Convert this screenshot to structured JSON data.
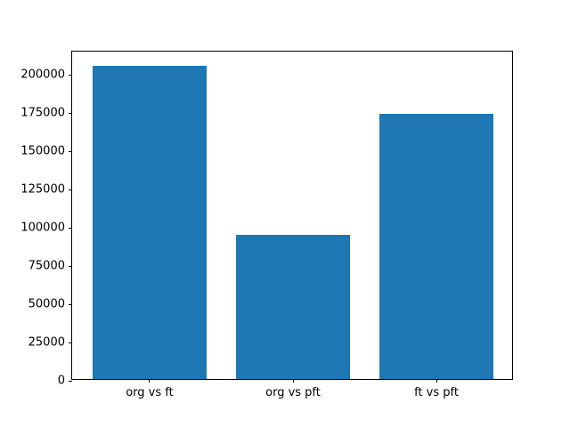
{
  "chart_data": {
    "type": "bar",
    "title": "",
    "xlabel": "",
    "ylabel": "",
    "categories": [
      "org vs ft",
      "org vs pft",
      "ft vs pft"
    ],
    "values": [
      205000,
      94500,
      173500
    ],
    "bar_color": "#1f77b4",
    "ylim": [
      0,
      215250
    ],
    "yticks": [
      0,
      25000,
      50000,
      75000,
      100000,
      125000,
      150000,
      175000,
      200000
    ],
    "grid": false,
    "legend": null,
    "axis_color": "#000000",
    "background_color": "#ffffff"
  }
}
